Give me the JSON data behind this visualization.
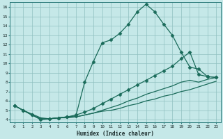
{
  "xlabel": "Humidex (Indice chaleur)",
  "ylabel": "",
  "background_color": "#c5e8e8",
  "grid_color": "#90c0c0",
  "line_color": "#1a6b5a",
  "xlim_min": -0.5,
  "xlim_max": 23.5,
  "ylim_min": 3.7,
  "ylim_max": 16.5,
  "x_ticks": [
    0,
    1,
    2,
    3,
    4,
    5,
    6,
    7,
    8,
    9,
    10,
    11,
    12,
    13,
    14,
    15,
    16,
    17,
    18,
    19,
    20,
    21,
    22,
    23
  ],
  "y_ticks": [
    4,
    5,
    6,
    7,
    8,
    9,
    10,
    11,
    12,
    13,
    14,
    15,
    16
  ],
  "lines": [
    {
      "x": [
        0,
        1,
        2,
        3,
        4,
        5,
        6,
        7,
        8,
        9,
        10,
        11,
        12,
        13,
        14,
        15,
        16,
        17,
        18,
        19,
        20,
        21,
        22,
        23
      ],
      "y": [
        5.5,
        5.0,
        4.5,
        4.0,
        4.1,
        4.2,
        4.3,
        4.4,
        8.0,
        10.2,
        12.2,
        12.5,
        13.2,
        14.2,
        15.5,
        16.3,
        15.5,
        14.2,
        13.0,
        11.2,
        9.6,
        9.4,
        8.6,
        8.5
      ],
      "marker": "D",
      "markersize": 2.5,
      "linewidth": 0.9
    },
    {
      "x": [
        0,
        1,
        2,
        3,
        4,
        5,
        6,
        7,
        8,
        9,
        10,
        11,
        12,
        13,
        14,
        15,
        16,
        17,
        18,
        19,
        20,
        21,
        22,
        23
      ],
      "y": [
        5.5,
        5.0,
        4.5,
        4.1,
        4.1,
        4.2,
        4.3,
        4.5,
        4.8,
        5.2,
        5.7,
        6.2,
        6.7,
        7.2,
        7.7,
        8.2,
        8.7,
        9.2,
        9.7,
        10.5,
        11.2,
        8.8,
        8.6,
        8.5
      ],
      "marker": "D",
      "markersize": 2.5,
      "linewidth": 0.9
    },
    {
      "x": [
        0,
        1,
        2,
        3,
        4,
        5,
        6,
        7,
        8,
        9,
        10,
        11,
        12,
        13,
        14,
        15,
        16,
        17,
        18,
        19,
        20,
        21,
        22,
        23
      ],
      "y": [
        5.5,
        5.0,
        4.5,
        4.1,
        4.1,
        4.2,
        4.3,
        4.3,
        4.5,
        4.7,
        5.0,
        5.3,
        5.6,
        6.0,
        6.3,
        6.7,
        7.0,
        7.3,
        7.6,
        8.0,
        8.2,
        8.0,
        8.3,
        8.5
      ],
      "marker": null,
      "markersize": 0,
      "linewidth": 0.9
    },
    {
      "x": [
        0,
        1,
        2,
        3,
        4,
        5,
        6,
        7,
        8,
        9,
        10,
        11,
        12,
        13,
        14,
        15,
        16,
        17,
        18,
        19,
        20,
        21,
        22,
        23
      ],
      "y": [
        5.5,
        5.0,
        4.6,
        4.2,
        4.1,
        4.2,
        4.2,
        4.3,
        4.5,
        4.7,
        4.9,
        5.0,
        5.2,
        5.5,
        5.7,
        6.0,
        6.2,
        6.5,
        6.7,
        7.0,
        7.2,
        7.5,
        7.8,
        8.1
      ],
      "marker": null,
      "markersize": 0,
      "linewidth": 0.9
    }
  ]
}
